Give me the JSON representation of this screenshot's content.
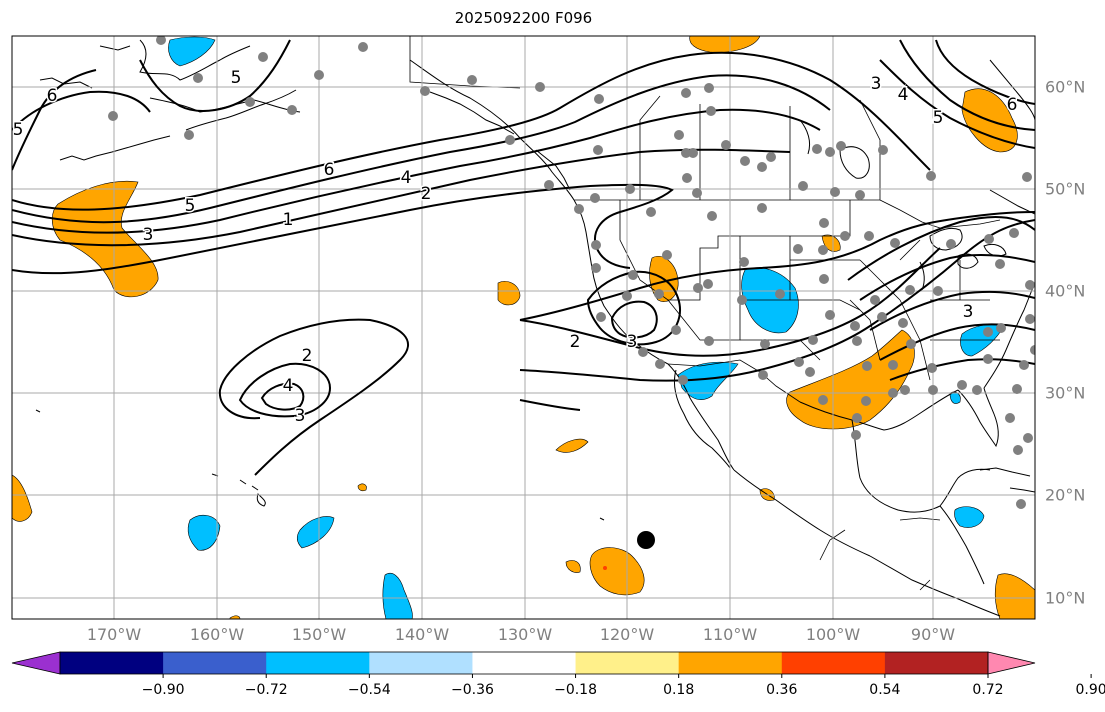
{
  "title": "2025092200 F096",
  "lon_labels": [
    "170°W",
    "160°W",
    "150°W",
    "140°W",
    "130°W",
    "120°W",
    "110°W",
    "100°W",
    "90°W"
  ],
  "lat_labels": [
    "60°N",
    "50°N",
    "40°N",
    "30°N",
    "20°N",
    "10°N"
  ],
  "colorbar": {
    "ticks": [
      "−0.90",
      "−0.72",
      "−0.54",
      "−0.36",
      "−0.18",
      "0.18",
      "0.36",
      "0.54",
      "0.72",
      "0.90"
    ],
    "colors": [
      "#9b30d0",
      "#000080",
      "#3a5fcd",
      "#00bfff",
      "#b0e0ff",
      "#ffffff",
      "#fff08a",
      "#ffa500",
      "#ff4000",
      "#b22222",
      "#ff88b0"
    ]
  },
  "contour_labels": [
    "6",
    "5",
    "5",
    "6",
    "4",
    "2",
    "1",
    "3",
    "5",
    "2",
    "4",
    "3",
    "2",
    "3",
    "3",
    "3",
    "6",
    "4",
    "5"
  ],
  "colors": {
    "positive_fill": "#ffa500",
    "negative_fill": "#00bfff",
    "station_dot": "#808080",
    "gridline": "#a9a9a9",
    "contour": "#000000"
  }
}
